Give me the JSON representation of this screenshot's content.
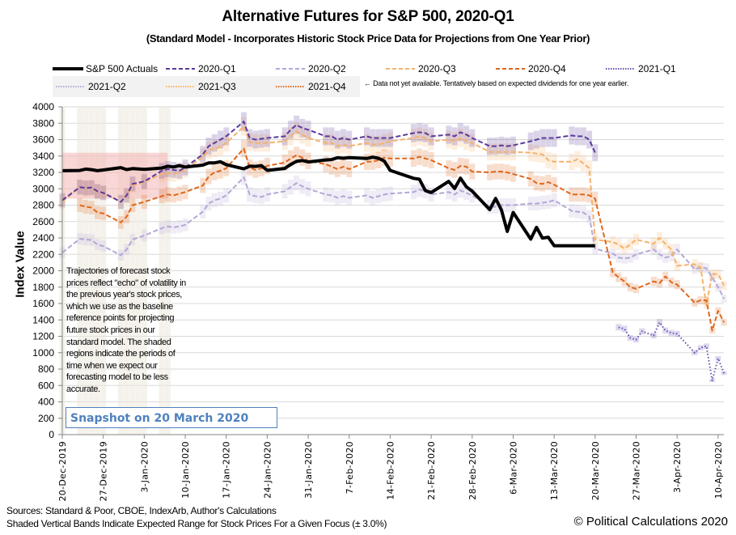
{
  "chart_data": {
    "type": "line",
    "title": "Alternative Futures for S&P 500, 2020-Q1",
    "subtitle": "(Standard Model - Incorporates Historic Stock Price Data for Projections from One Year Prior)",
    "xlabel": "",
    "ylabel": "Index Value",
    "ylim": [
      0,
      4000
    ],
    "yticks": [
      0,
      200,
      400,
      600,
      800,
      1000,
      1200,
      1400,
      1600,
      1800,
      2000,
      2200,
      2400,
      2600,
      2800,
      3000,
      3200,
      3400,
      3600,
      3800,
      4000
    ],
    "x_start_date": "20-Dec-2019",
    "x_range_days": [
      0,
      113
    ],
    "xtick_labels": [
      "20-Dec-2019",
      "27-Dec-2019",
      "3-Jan-2020",
      "10-Jan-2020",
      "17-Jan-2020",
      "24-Jan-2020",
      "31-Jan-2020",
      "7-Feb-2020",
      "14-Feb-2020",
      "21-Feb-2020",
      "28-Feb-2020",
      "6-Mar-2020",
      "13-Mar-2020",
      "20-Mar-2020",
      "27-Mar-2020",
      "3-Apr-2020",
      "10-Apr-2020"
    ],
    "xtick_days": [
      0,
      7,
      14,
      21,
      28,
      35,
      42,
      49,
      56,
      63,
      70,
      77,
      84,
      91,
      98,
      105,
      112
    ],
    "grid": true,
    "legend_position": "top",
    "band_pct": 3.0,
    "shaded_region": {
      "x_days": [
        0,
        18
      ],
      "y_range": [
        2880,
        3440
      ],
      "color": "#f4b6b6"
    },
    "shaded_vertical_days": [
      0,
      3,
      4,
      5,
      6,
      7,
      10,
      11,
      12,
      13,
      14,
      17,
      18
    ],
    "series": [
      {
        "name": "S&P 500 Actuals",
        "color": "#000000",
        "style": "solid",
        "x": [
          0,
          3,
          4,
          5,
          6,
          7,
          10,
          11,
          12,
          14,
          17,
          18,
          19,
          20,
          21,
          24,
          25,
          26,
          27,
          28,
          31,
          32,
          33,
          34,
          35,
          38,
          39,
          40,
          41,
          42,
          45,
          46,
          47,
          48,
          49,
          52,
          53,
          54,
          55,
          56,
          60,
          61,
          62,
          63,
          66,
          67,
          68,
          69,
          70,
          73,
          74,
          75,
          76,
          77,
          80,
          81,
          82,
          83,
          84,
          87,
          88,
          89,
          90,
          91
        ],
        "values": [
          3221,
          3224,
          3240,
          3234,
          3221,
          3230,
          3258,
          3235,
          3246,
          3237,
          3253,
          3275,
          3266,
          3283,
          3265,
          3289,
          3316,
          3317,
          3330,
          3295,
          3243,
          3276,
          3273,
          3283,
          3225,
          3248,
          3297,
          3334,
          3345,
          3327,
          3352,
          3357,
          3379,
          3373,
          3380,
          3370,
          3386,
          3373,
          3337,
          3225,
          3128,
          3116,
          2978,
          2954,
          3090,
          3003,
          3130,
          3024,
          2972,
          2746,
          2882,
          2741,
          2480,
          2711,
          2386,
          2529,
          2398,
          2409,
          2305,
          2305,
          2305,
          2305,
          2305,
          2305
        ]
      },
      {
        "name": "2020-Q1",
        "color": "#5b3a9b",
        "style": "dashed",
        "x": [
          0,
          3,
          4,
          5,
          6,
          7,
          10,
          11,
          12,
          14,
          17,
          18,
          19,
          20,
          21,
          24,
          25,
          26,
          27,
          28,
          31,
          32,
          33,
          34,
          35,
          38,
          39,
          40,
          41,
          42,
          45,
          46,
          47,
          48,
          49,
          52,
          53,
          54,
          55,
          56,
          60,
          61,
          62,
          63,
          66,
          67,
          68,
          69,
          70,
          73,
          74,
          75,
          76,
          77,
          80,
          81,
          82,
          83,
          84,
          87,
          88,
          89,
          90,
          91
        ],
        "values": [
          2860,
          3020,
          3010,
          3015,
          2970,
          2950,
          2840,
          2920,
          3060,
          3090,
          3220,
          3240,
          3230,
          3220,
          3260,
          3420,
          3520,
          3560,
          3600,
          3640,
          3820,
          3620,
          3600,
          3610,
          3620,
          3640,
          3720,
          3780,
          3740,
          3720,
          3640,
          3640,
          3600,
          3620,
          3600,
          3640,
          3620,
          3620,
          3620,
          3620,
          3680,
          3690,
          3680,
          3640,
          3660,
          3640,
          3690,
          3660,
          3620,
          3520,
          3520,
          3530,
          3520,
          3530,
          3580,
          3600,
          3620,
          3620,
          3620,
          3650,
          3640,
          3640,
          3600,
          3440
        ]
      },
      {
        "name": "2020-Q2",
        "color": "#b4a7d6",
        "style": "dashed",
        "x": [
          0,
          3,
          4,
          5,
          6,
          7,
          10,
          11,
          12,
          14,
          17,
          18,
          19,
          20,
          21,
          24,
          25,
          26,
          27,
          28,
          31,
          32,
          33,
          34,
          35,
          38,
          39,
          40,
          41,
          42,
          45,
          46,
          47,
          48,
          49,
          52,
          53,
          54,
          55,
          56,
          60,
          61,
          62,
          63,
          66,
          67,
          68,
          69,
          70,
          73,
          74,
          75,
          76,
          77,
          80,
          81,
          82,
          83,
          84,
          87,
          88,
          89,
          90,
          91,
          94,
          95,
          96,
          97,
          98,
          101,
          102,
          103,
          104,
          105,
          108,
          109,
          110,
          111,
          112,
          113
        ],
        "values": [
          2220,
          2390,
          2380,
          2375,
          2320,
          2300,
          2190,
          2260,
          2380,
          2430,
          2520,
          2540,
          2530,
          2540,
          2560,
          2720,
          2820,
          2860,
          2880,
          2920,
          3140,
          2930,
          2910,
          2900,
          2930,
          2970,
          3020,
          3070,
          3030,
          3000,
          2930,
          2920,
          2890,
          2910,
          2890,
          2920,
          2890,
          2910,
          2930,
          2940,
          2960,
          2990,
          2970,
          2930,
          2960,
          2930,
          2980,
          2950,
          2920,
          2780,
          2780,
          2800,
          2800,
          2800,
          2820,
          2820,
          2830,
          2840,
          2860,
          2730,
          2720,
          2710,
          2660,
          2270,
          2210,
          2160,
          2150,
          2160,
          2200,
          2260,
          2200,
          2160,
          2180,
          2260,
          2020,
          2040,
          2030,
          1920,
          1800,
          1660
        ]
      },
      {
        "name": "2020-Q3",
        "color": "#f6b26b",
        "style": "dashed",
        "x": [
          0,
          3,
          4,
          5,
          6,
          7,
          10,
          11,
          12,
          14,
          17,
          18,
          19,
          20,
          21,
          24,
          25,
          26,
          27,
          28,
          31,
          32,
          33,
          34,
          35,
          38,
          39,
          40,
          41,
          42,
          45,
          46,
          47,
          48,
          49,
          52,
          53,
          54,
          55,
          56,
          60,
          61,
          62,
          63,
          66,
          67,
          68,
          69,
          70,
          73,
          74,
          75,
          76,
          77,
          80,
          81,
          82,
          83,
          84,
          87,
          88,
          89,
          90,
          91,
          94,
          95,
          96,
          97,
          98,
          101,
          102,
          103,
          104,
          105,
          108,
          109,
          110,
          111,
          112,
          113
        ],
        "values": [
          2840,
          3020,
          3010,
          3010,
          2960,
          2950,
          2840,
          2910,
          3040,
          3080,
          3180,
          3190,
          3180,
          3200,
          3230,
          3390,
          3470,
          3490,
          3510,
          3560,
          3760,
          3570,
          3560,
          3560,
          3560,
          3580,
          3640,
          3700,
          3660,
          3620,
          3560,
          3560,
          3520,
          3540,
          3520,
          3560,
          3540,
          3540,
          3560,
          3580,
          3620,
          3640,
          3620,
          3580,
          3600,
          3580,
          3620,
          3580,
          3560,
          3450,
          3450,
          3450,
          3450,
          3450,
          3440,
          3430,
          3420,
          3350,
          3330,
          3330,
          3360,
          3310,
          3250,
          2380,
          2350,
          2320,
          2270,
          2320,
          2380,
          2330,
          2400,
          2330,
          2260,
          2060,
          2080,
          2040,
          1580,
          1960,
          1960,
          1820
        ]
      },
      {
        "name": "2020-Q4",
        "color": "#e0661a",
        "style": "dashed",
        "x": [
          3,
          4,
          5,
          6,
          7,
          10,
          11,
          12,
          14,
          17,
          18,
          19,
          20,
          21,
          24,
          25,
          26,
          27,
          28,
          31,
          32,
          33,
          34,
          35,
          38,
          39,
          40,
          41,
          42,
          45,
          46,
          47,
          48,
          49,
          52,
          53,
          54,
          55,
          56,
          60,
          61,
          62,
          63,
          66,
          67,
          68,
          69,
          70,
          73,
          74,
          75,
          76,
          77,
          80,
          81,
          82,
          83,
          84,
          87,
          88,
          89,
          90,
          91,
          94,
          95,
          96,
          97,
          98,
          101,
          102,
          103,
          104,
          105,
          108,
          109,
          110,
          111,
          112,
          113
        ],
        "values": [
          2800,
          2780,
          2770,
          2710,
          2700,
          2590,
          2660,
          2800,
          2840,
          2910,
          2930,
          2920,
          2940,
          2960,
          3040,
          3150,
          3200,
          3220,
          3250,
          3490,
          3260,
          3230,
          3250,
          3280,
          3320,
          3370,
          3410,
          3380,
          3340,
          3300,
          3270,
          3240,
          3270,
          3240,
          3330,
          3330,
          3350,
          3380,
          3370,
          3370,
          3390,
          3370,
          3350,
          3250,
          3230,
          3280,
          3270,
          3210,
          3200,
          3210,
          3210,
          3200,
          3180,
          3120,
          3070,
          3060,
          3080,
          3050,
          2930,
          2930,
          2930,
          2920,
          2880,
          1980,
          1920,
          1870,
          1800,
          1780,
          1870,
          1850,
          1930,
          1860,
          1830,
          1610,
          1640,
          1640,
          1270,
          1510,
          1370
        ]
      },
      {
        "name": "2021-Q1",
        "color": "#6a4fb0",
        "style": "dotted",
        "x": [
          95,
          96,
          97,
          98,
          99,
          101,
          102,
          103,
          104,
          105,
          108,
          109,
          110,
          111,
          112,
          113
        ],
        "values": [
          1310,
          1290,
          1180,
          1160,
          1260,
          1210,
          1370,
          1270,
          1240,
          1230,
          1000,
          1060,
          1080,
          660,
          930,
          750
        ]
      },
      {
        "name": "2021-Q2",
        "color": "#b4a7d6",
        "style": "dotted",
        "x": [],
        "values": []
      },
      {
        "name": "2021-Q3",
        "color": "#f6b26b",
        "style": "dotted",
        "x": [],
        "values": []
      },
      {
        "name": "2021-Q4",
        "color": "#e0661a",
        "style": "dotted",
        "x": [],
        "values": []
      }
    ],
    "legend_note": "← Data not yet available.  Tentatively based on expected dividends for one year earlier.",
    "annotation": "Trajectories of forecast stock prices reflect \"echo\" of volatility in  the previous year's stock prices, which we use as the baseline reference points for projecting future stock prices in our standard model.   The shaded regions indicate the periods of time when we expect our forecasting model to be less accurate.",
    "snapshot_label": "Snapshot on 20 March 2020"
  },
  "footer": {
    "sources": "Sources: Standard & Poor, CBOE, IndexArb, Author's Calculations",
    "bands_note": "Shaded Vertical Bands Indicate Expected Range for Stock Prices For a Given Focus (± 3.0%)",
    "copyright": "© Political Calculations 2020"
  }
}
